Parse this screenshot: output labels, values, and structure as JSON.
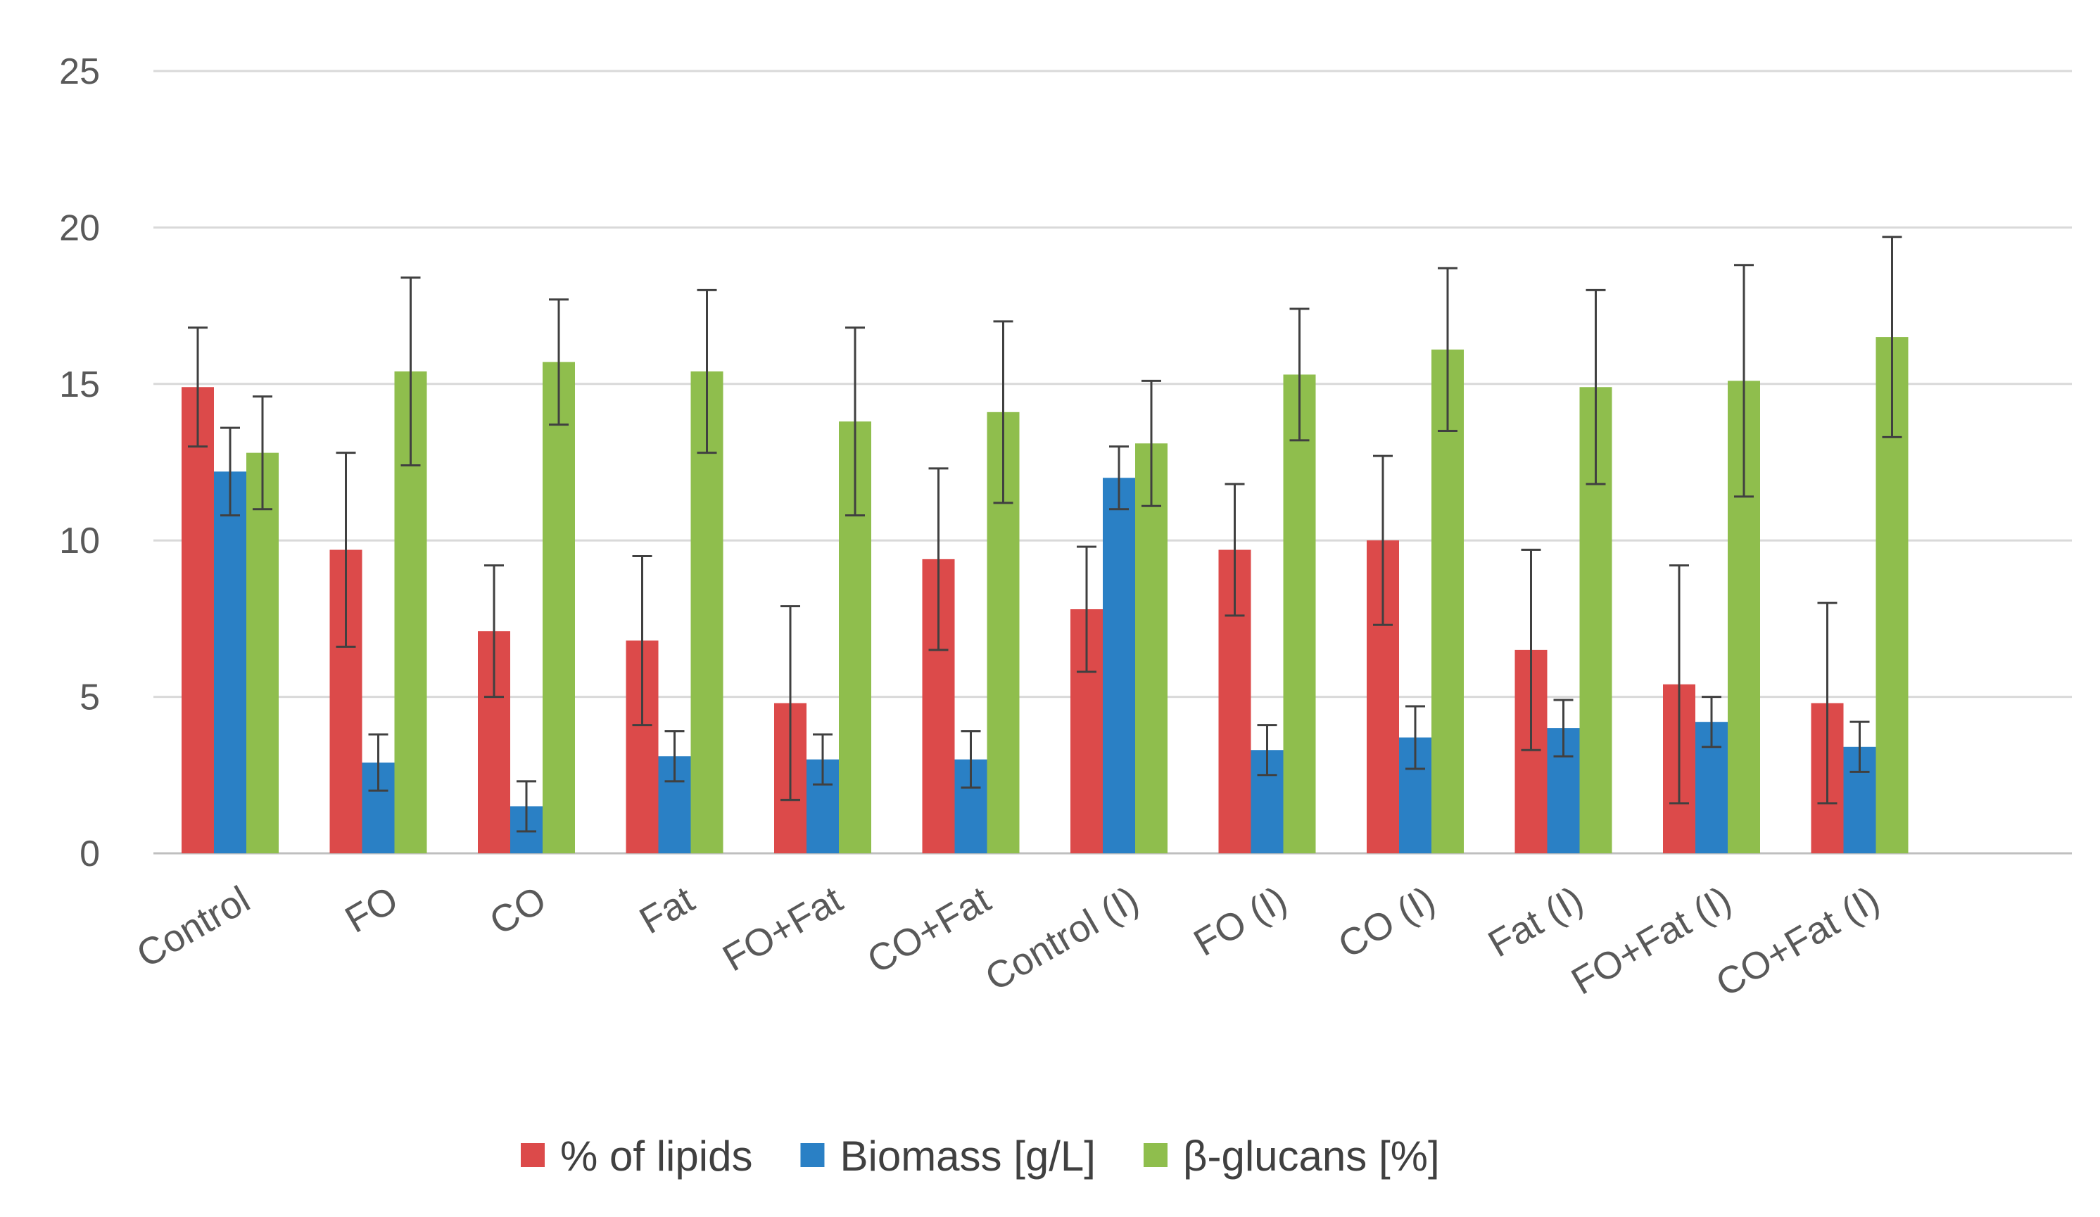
{
  "chart_data": {
    "type": "bar",
    "title": "",
    "xlabel": "",
    "ylabel": "",
    "ylim": [
      0,
      25
    ],
    "yticks": [
      0,
      5,
      10,
      15,
      20,
      25
    ],
    "grid": true,
    "legend_position": "bottom",
    "categories": [
      "Control",
      "FO",
      "CO",
      "Fat",
      "FO+Fat",
      "CO+Fat",
      "Control (I)",
      "FO (I)",
      "CO (I)",
      "Fat (I)",
      "FO+Fat (I)",
      "CO+Fat (I)"
    ],
    "series": [
      {
        "name": "% of lipids",
        "color": "#dc4a4a",
        "values": [
          14.9,
          9.7,
          7.1,
          6.8,
          4.8,
          9.4,
          7.8,
          9.7,
          10.0,
          6.5,
          5.4,
          4.8
        ],
        "errors": [
          1.9,
          3.1,
          2.1,
          2.7,
          3.1,
          2.9,
          2.0,
          2.1,
          2.7,
          3.2,
          3.8,
          3.2
        ]
      },
      {
        "name": "Biomass [g/L]",
        "color": "#2a80c5",
        "values": [
          12.2,
          2.9,
          1.5,
          3.1,
          3.0,
          3.0,
          12.0,
          3.3,
          3.7,
          4.0,
          4.2,
          3.4
        ],
        "errors": [
          1.4,
          0.9,
          0.8,
          0.8,
          0.8,
          0.9,
          1.0,
          0.8,
          1.0,
          0.9,
          0.8,
          0.8
        ]
      },
      {
        "name": "β-glucans [%]",
        "color": "#8fbe4d",
        "values": [
          12.8,
          15.4,
          15.7,
          15.4,
          13.8,
          14.1,
          13.1,
          15.3,
          16.1,
          14.9,
          15.1,
          16.5
        ],
        "errors": [
          1.8,
          3.0,
          2.0,
          2.6,
          3.0,
          2.9,
          2.0,
          2.1,
          2.6,
          3.1,
          3.7,
          3.2
        ]
      }
    ]
  }
}
